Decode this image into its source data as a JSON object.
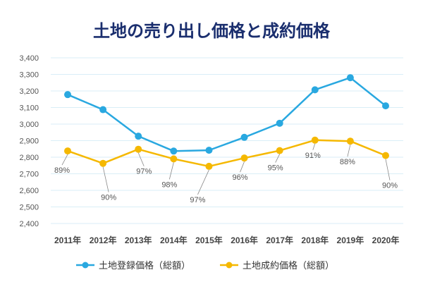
{
  "chart_data": {
    "type": "line",
    "title": "土地の売り出し価格と成約価格",
    "categories": [
      "2011年",
      "2012年",
      "2013年",
      "2014年",
      "2015年",
      "2016年",
      "2017年",
      "2018年",
      "2019年",
      "2020年"
    ],
    "y_ticks": [
      "3,400",
      "3,300",
      "3,200",
      "3,100",
      "3,000",
      "2,900",
      "2,800",
      "2,700",
      "2,600",
      "2,500",
      "2,400"
    ],
    "ylim": [
      2400,
      3400
    ],
    "grid": true,
    "legend_position": "bottom",
    "series": [
      {
        "name": "土地登録価格（総額）",
        "color": "#29a8e0",
        "values": [
          3178,
          3087,
          2927,
          2837,
          2842,
          2920,
          3005,
          3207,
          3280,
          3110
        ]
      },
      {
        "name": "土地成約価格（総額）",
        "color": "#f5b800",
        "values": [
          2838,
          2763,
          2848,
          2790,
          2745,
          2795,
          2840,
          2903,
          2897,
          2810
        ]
      }
    ],
    "annotations": [
      "89%",
      "90%",
      "97%",
      "98%",
      "97%",
      "96%",
      "95%",
      "91%",
      "88%",
      "90%"
    ]
  },
  "colors": {
    "title": "#1a2e6e",
    "grid": "#d9eef7",
    "leader": "#888888"
  }
}
